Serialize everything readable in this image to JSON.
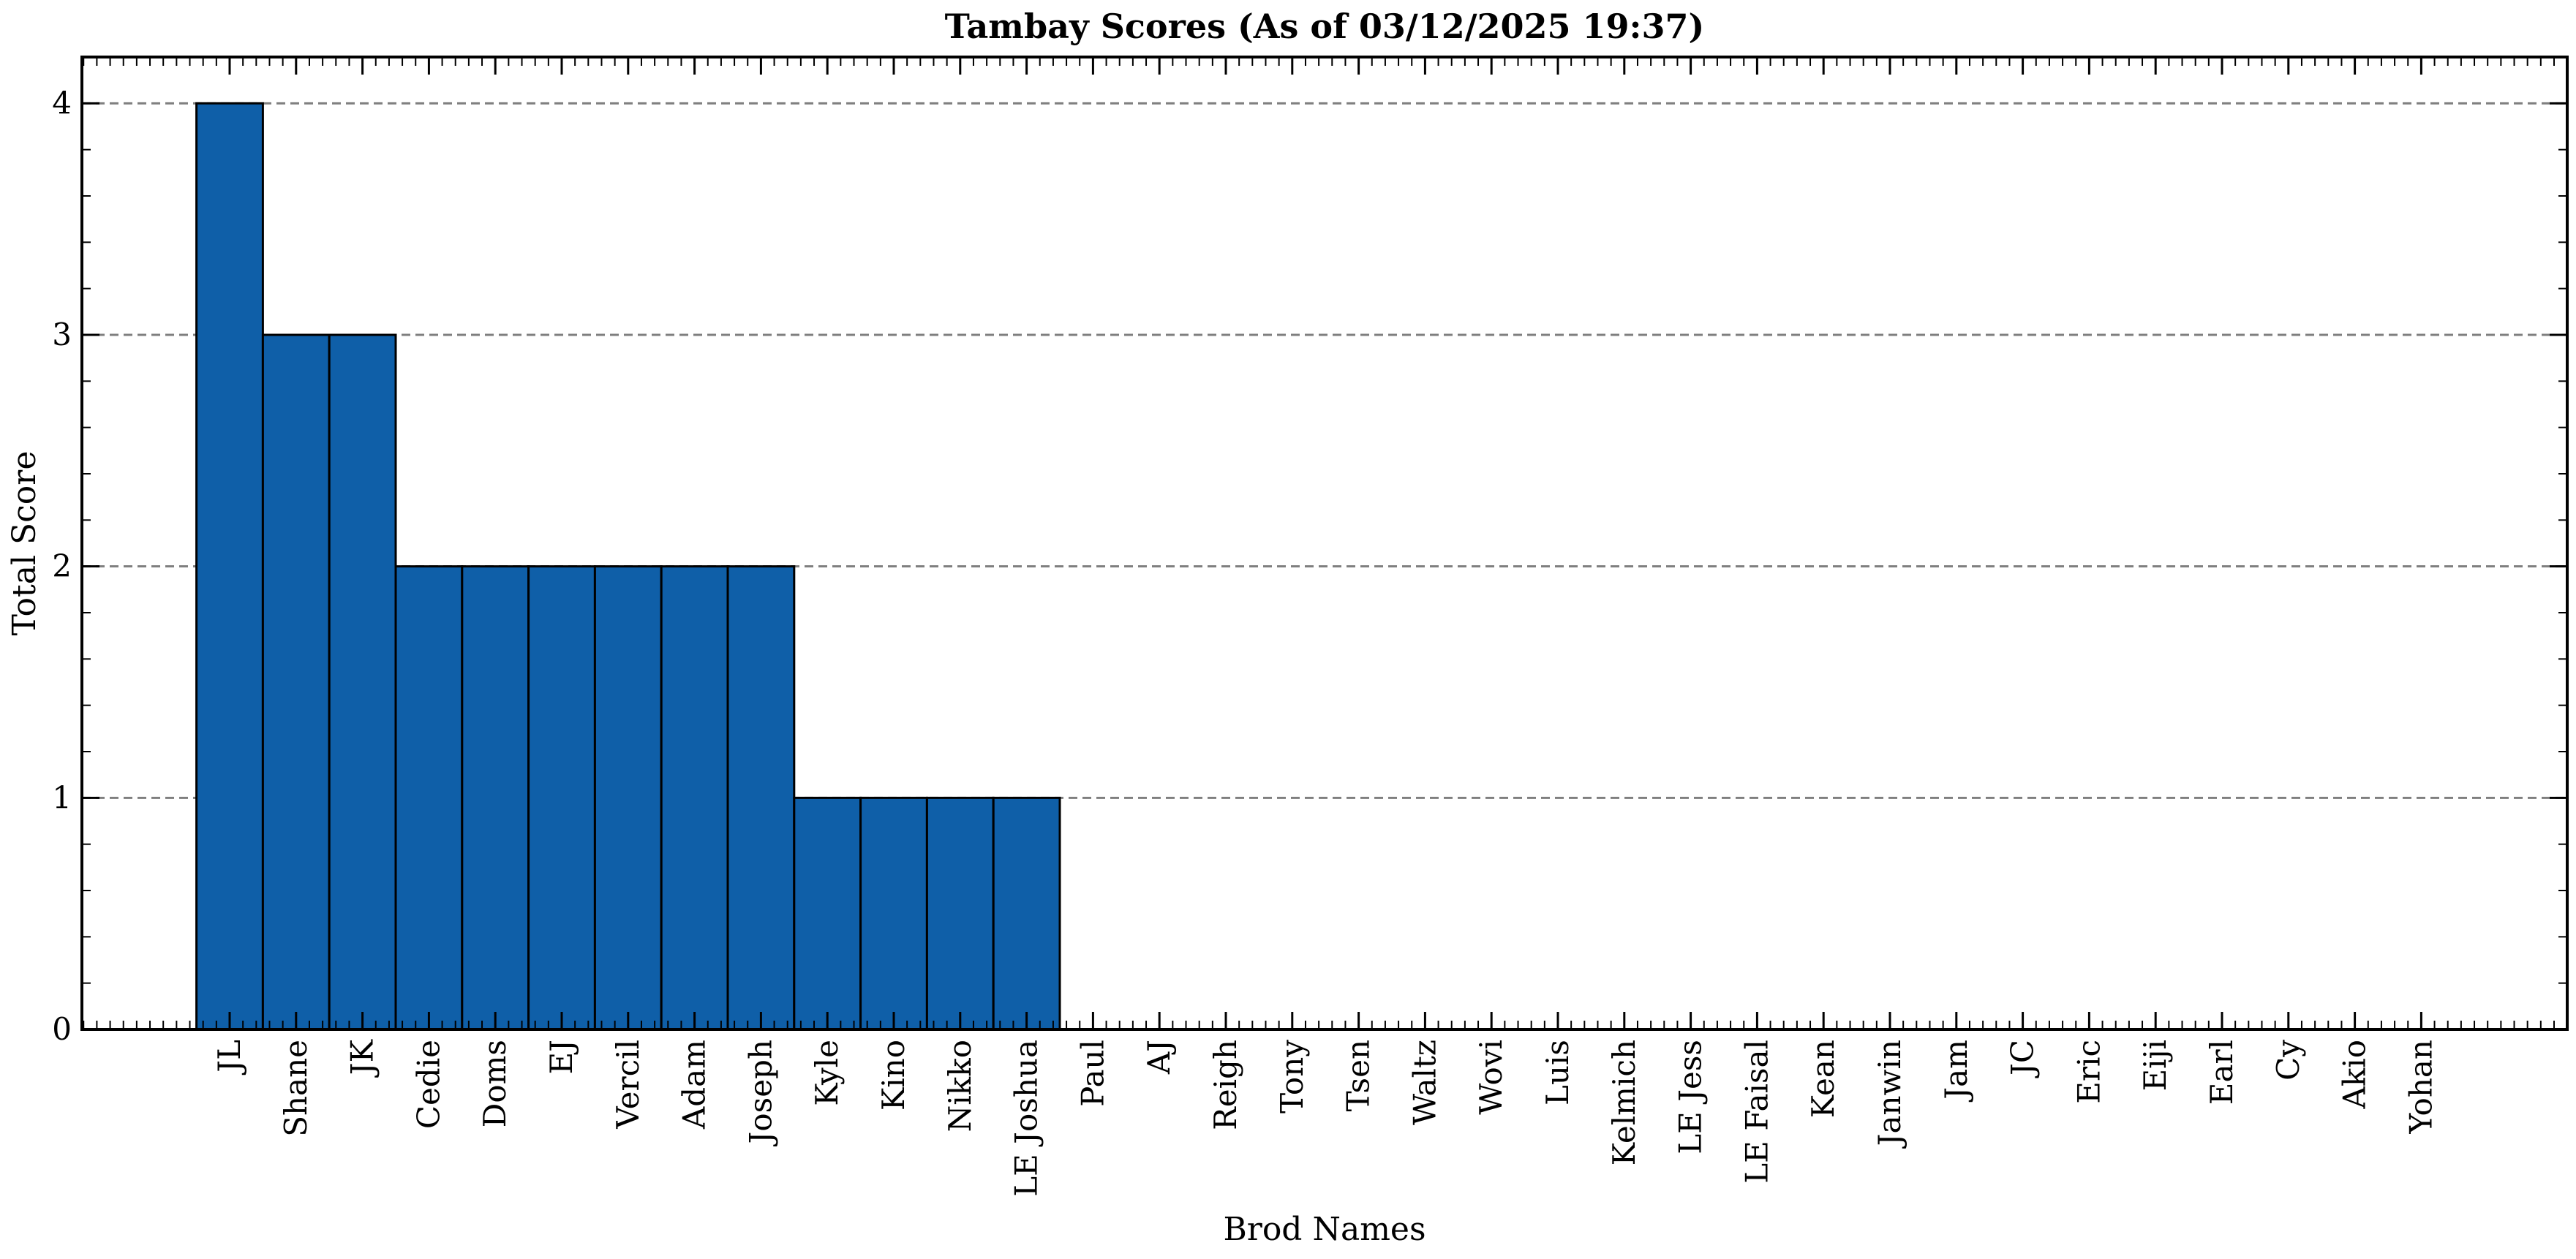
{
  "chart_data": {
    "type": "bar",
    "title": "Tambay Scores (As of 03/12/2025 19:37)",
    "xlabel": "Brod Names",
    "ylabel": "Total Score",
    "categories": [
      "JL",
      "Shane",
      "JK",
      "Cedie",
      "Doms",
      "EJ",
      "Vercil",
      "Adam",
      "Joseph",
      "Kyle",
      "Kino",
      "Nikko",
      "LE Joshua",
      "Paul",
      "AJ",
      "Reigh",
      "Tony",
      "Tsen",
      "Waltz",
      "Wovi",
      "Luis",
      "Kelmich",
      "LE Jess",
      "LE Faisal",
      "Kean",
      "Janwin",
      "Jam",
      "JC",
      "Eric",
      "Eiji",
      "Earl",
      "Cy",
      "Akio",
      "Yohan"
    ],
    "values": [
      4,
      3,
      3,
      2,
      2,
      2,
      2,
      2,
      2,
      1,
      1,
      1,
      1,
      0,
      0,
      0,
      0,
      0,
      0,
      0,
      0,
      0,
      0,
      0,
      0,
      0,
      0,
      0,
      0,
      0,
      0,
      0,
      0,
      0
    ],
    "ylim": [
      0,
      4.2
    ],
    "yticks": [
      "0",
      "1",
      "2",
      "3",
      "4"
    ],
    "grid": "y-dashed",
    "bar_color": "#0f5fa8"
  }
}
